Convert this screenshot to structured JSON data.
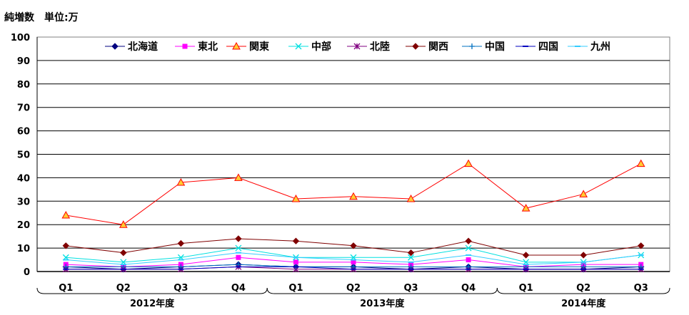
{
  "unit_label": "純増数　単位:万",
  "chart_data": {
    "type": "line",
    "title": "",
    "xlabel": "",
    "ylabel": "",
    "ylim": [
      0,
      100
    ],
    "yticks": [
      0,
      10,
      20,
      30,
      40,
      50,
      60,
      70,
      80,
      90,
      100
    ],
    "grid": true,
    "legend_position": "top",
    "categories": [
      "Q1",
      "Q2",
      "Q3",
      "Q4",
      "Q1",
      "Q2",
      "Q3",
      "Q4",
      "Q1",
      "Q2",
      "Q3"
    ],
    "groups": [
      {
        "label": "2012年度",
        "count": 4
      },
      {
        "label": "2013年度",
        "count": 4
      },
      {
        "label": "2014年度",
        "count": 3
      }
    ],
    "series": [
      {
        "name": "北海道",
        "color": "#000080",
        "marker": "diamond",
        "values": [
          2,
          1,
          2,
          3,
          2,
          2,
          1,
          2,
          1,
          1,
          2
        ]
      },
      {
        "name": "東北",
        "color": "#ff00ff",
        "marker": "square",
        "values": [
          3,
          2,
          3,
          6,
          4,
          4,
          3,
          5,
          2,
          3,
          3
        ]
      },
      {
        "name": "関東",
        "color": "#ff0000",
        "marker": "triangle",
        "values": [
          24,
          20,
          38,
          40,
          31,
          32,
          31,
          46,
          27,
          33,
          46
        ]
      },
      {
        "name": "中部",
        "color": "#00e0e0",
        "marker": "x",
        "values": [
          6,
          4,
          6,
          10,
          6,
          6,
          6,
          10,
          4,
          4,
          7
        ]
      },
      {
        "name": "北陸",
        "color": "#800080",
        "marker": "star",
        "values": [
          1,
          1,
          1,
          2,
          1,
          1,
          1,
          1,
          1,
          1,
          1
        ]
      },
      {
        "name": "関西",
        "color": "#800000",
        "marker": "diamond",
        "values": [
          11,
          8,
          12,
          14,
          13,
          11,
          8,
          13,
          7,
          7,
          11
        ]
      },
      {
        "name": "中国",
        "color": "#0070c0",
        "marker": "plus",
        "values": [
          2,
          2,
          2,
          3,
          2,
          2,
          2,
          2,
          2,
          2,
          2
        ]
      },
      {
        "name": "四国",
        "color": "#0000c0",
        "marker": "dash",
        "values": [
          1,
          1,
          1,
          2,
          2,
          1,
          1,
          1,
          1,
          1,
          1
        ]
      },
      {
        "name": "九州",
        "color": "#33ccff",
        "marker": "dash",
        "values": [
          5,
          3,
          5,
          8,
          6,
          5,
          4,
          7,
          3,
          4,
          7
        ]
      }
    ]
  }
}
